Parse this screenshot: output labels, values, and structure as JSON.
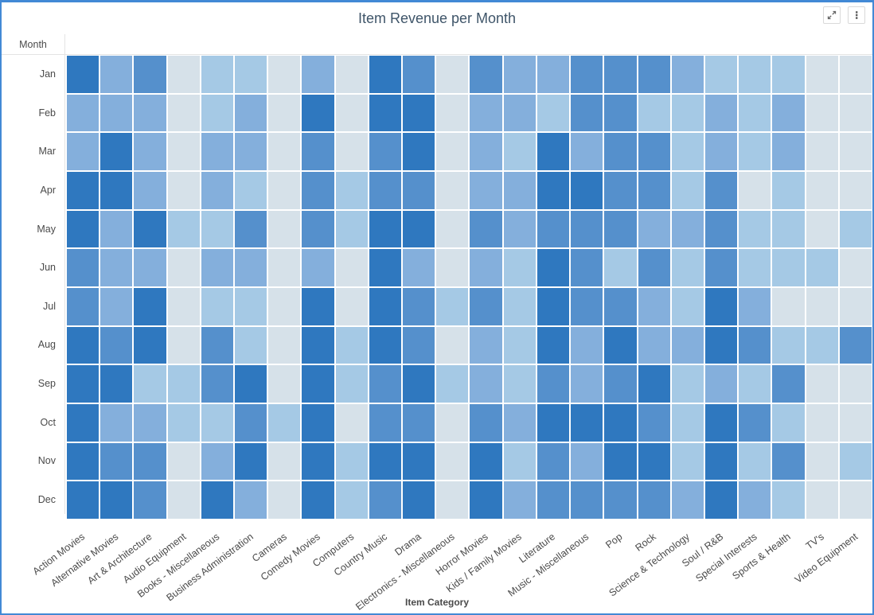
{
  "window": {
    "title": "Item Revenue per Month"
  },
  "toolbar": {
    "fullscreen_button": "expand",
    "menu_button": "more options"
  },
  "axes": {
    "y_title": "Month",
    "x_title": "Item Category"
  },
  "chart_data": {
    "type": "heatmap",
    "title": "Item Revenue per Month",
    "xlabel": "Item Category",
    "ylabel": "Month",
    "rows": [
      "Jan",
      "Feb",
      "Mar",
      "Apr",
      "May",
      "Jun",
      "Jul",
      "Aug",
      "Sep",
      "Oct",
      "Nov",
      "Dec"
    ],
    "columns": [
      "Action Movies",
      "Alternative Movies",
      "Art & Architecture",
      "Audio Equipment",
      "Books - Miscellaneous",
      "Business Administration",
      "Cameras",
      "Comedy Movies",
      "Computers",
      "Country Music",
      "Drama",
      "Electronics - Miscellaneous",
      "Horror Movies",
      "Kids / Family Movies",
      "Literature",
      "Music - Miscellaneous",
      "Pop",
      "Rock",
      "Science & Technology",
      "Soul / R&B",
      "Special Interests",
      "Sports & Health",
      "TV's",
      "Video Equipment"
    ],
    "value_encoding": "color intensity level 0 (lightest / lowest revenue) to 4 (darkest / highest revenue); no numeric labels shown in chart",
    "palette": {
      "levels": [
        "#d6e1e9",
        "#a5c9e5",
        "#84afdc",
        "#5590cc",
        "#2f78bf"
      ]
    },
    "grid_gap_color": "#ffffff",
    "legend": "none",
    "values_levels": [
      [
        4,
        2,
        3,
        0,
        1,
        1,
        0,
        2,
        0,
        4,
        3,
        0,
        3,
        2,
        2,
        3,
        3,
        3,
        2,
        1,
        1,
        1,
        0,
        0
      ],
      [
        2,
        2,
        2,
        0,
        1,
        2,
        0,
        4,
        0,
        4,
        4,
        0,
        2,
        2,
        1,
        3,
        3,
        1,
        1,
        2,
        1,
        2,
        0,
        0
      ],
      [
        2,
        4,
        2,
        0,
        2,
        2,
        0,
        3,
        0,
        3,
        4,
        0,
        2,
        1,
        4,
        2,
        3,
        3,
        1,
        2,
        1,
        2,
        0,
        0
      ],
      [
        4,
        4,
        2,
        0,
        2,
        1,
        0,
        3,
        1,
        3,
        3,
        0,
        2,
        2,
        4,
        4,
        3,
        3,
        1,
        3,
        0,
        1,
        0,
        0
      ],
      [
        4,
        2,
        4,
        1,
        1,
        3,
        0,
        3,
        1,
        4,
        4,
        0,
        3,
        2,
        3,
        3,
        3,
        2,
        2,
        3,
        1,
        1,
        0,
        1
      ],
      [
        3,
        2,
        2,
        0,
        2,
        2,
        0,
        2,
        0,
        4,
        2,
        0,
        2,
        1,
        4,
        3,
        1,
        3,
        1,
        3,
        1,
        1,
        1,
        0
      ],
      [
        3,
        2,
        4,
        0,
        1,
        1,
        0,
        4,
        0,
        4,
        3,
        1,
        3,
        1,
        4,
        3,
        3,
        2,
        1,
        4,
        2,
        0,
        0,
        0
      ],
      [
        4,
        3,
        4,
        0,
        3,
        1,
        0,
        4,
        1,
        4,
        3,
        0,
        2,
        1,
        4,
        2,
        4,
        2,
        2,
        4,
        3,
        1,
        1,
        3
      ],
      [
        4,
        4,
        1,
        1,
        3,
        4,
        0,
        4,
        1,
        3,
        4,
        1,
        2,
        1,
        3,
        2,
        3,
        4,
        1,
        2,
        1,
        3,
        0,
        0
      ],
      [
        4,
        2,
        2,
        1,
        1,
        3,
        1,
        4,
        0,
        3,
        3,
        0,
        3,
        2,
        4,
        4,
        4,
        3,
        1,
        4,
        3,
        1,
        0,
        0
      ],
      [
        4,
        3,
        3,
        0,
        2,
        4,
        0,
        4,
        1,
        4,
        4,
        0,
        4,
        1,
        3,
        2,
        4,
        4,
        1,
        4,
        1,
        3,
        0,
        1
      ],
      [
        4,
        4,
        3,
        0,
        4,
        2,
        0,
        4,
        1,
        3,
        4,
        0,
        4,
        2,
        3,
        3,
        3,
        3,
        2,
        4,
        2,
        1,
        0,
        0
      ]
    ],
    "colors": {
      "window_border": "#4289d5",
      "title_text": "#3f5569",
      "axis_text": "#4a4a4a"
    }
  }
}
